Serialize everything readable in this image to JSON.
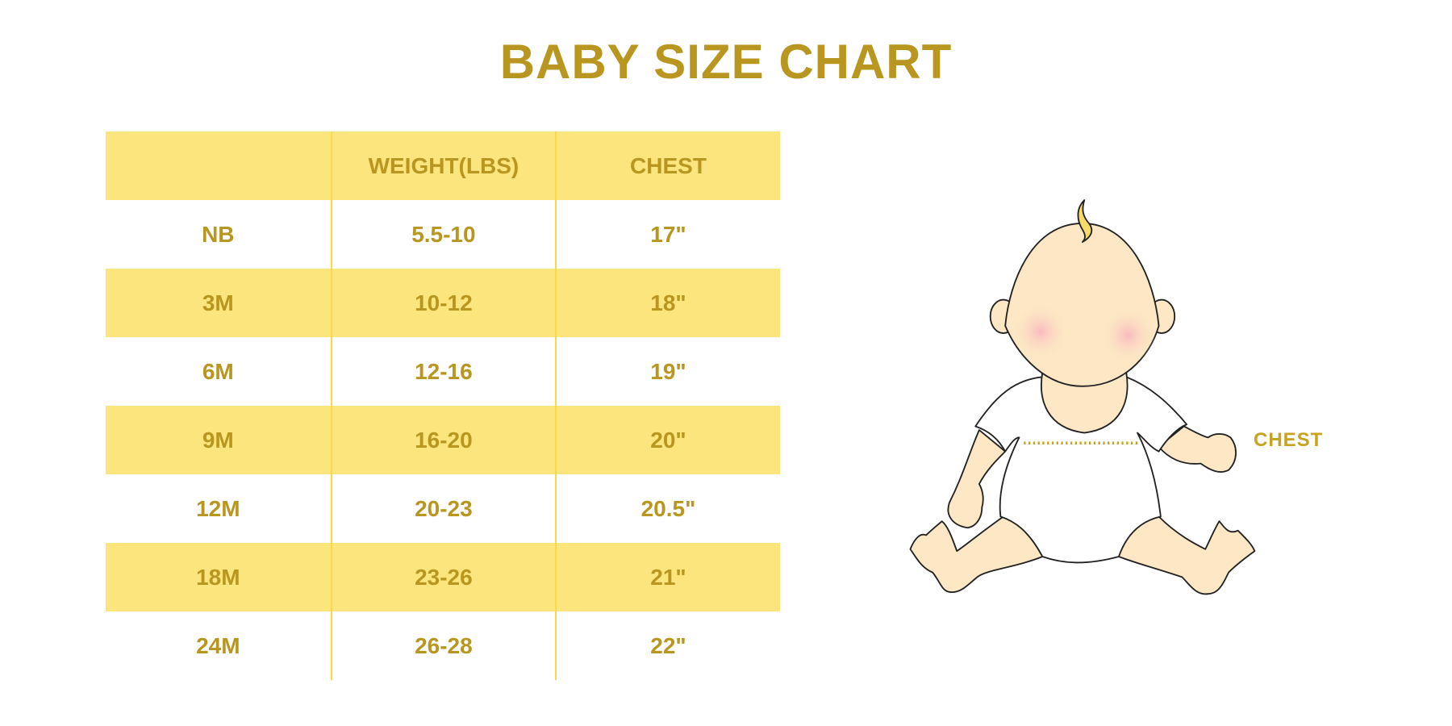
{
  "title": "BABY SIZE CHART",
  "colors": {
    "accent_text": "#B8961F",
    "row_fill": "#FCE57D",
    "skin": "#FDE7C4",
    "blush": "#F9B9C0"
  },
  "table": {
    "headers": [
      "",
      "WEIGHT(LBS)",
      "CHEST"
    ],
    "rows": [
      [
        "NB",
        "5.5-10",
        "17\""
      ],
      [
        "3M",
        "10-12",
        "18\""
      ],
      [
        "6M",
        "12-16",
        "19\""
      ],
      [
        "9M",
        "16-20",
        "20\""
      ],
      [
        "12M",
        "20-23",
        "20.5\""
      ],
      [
        "18M",
        "23-26",
        "21\""
      ],
      [
        "24M",
        "26-28",
        "22\""
      ]
    ]
  },
  "illustration": {
    "chest_label": "CHEST"
  }
}
